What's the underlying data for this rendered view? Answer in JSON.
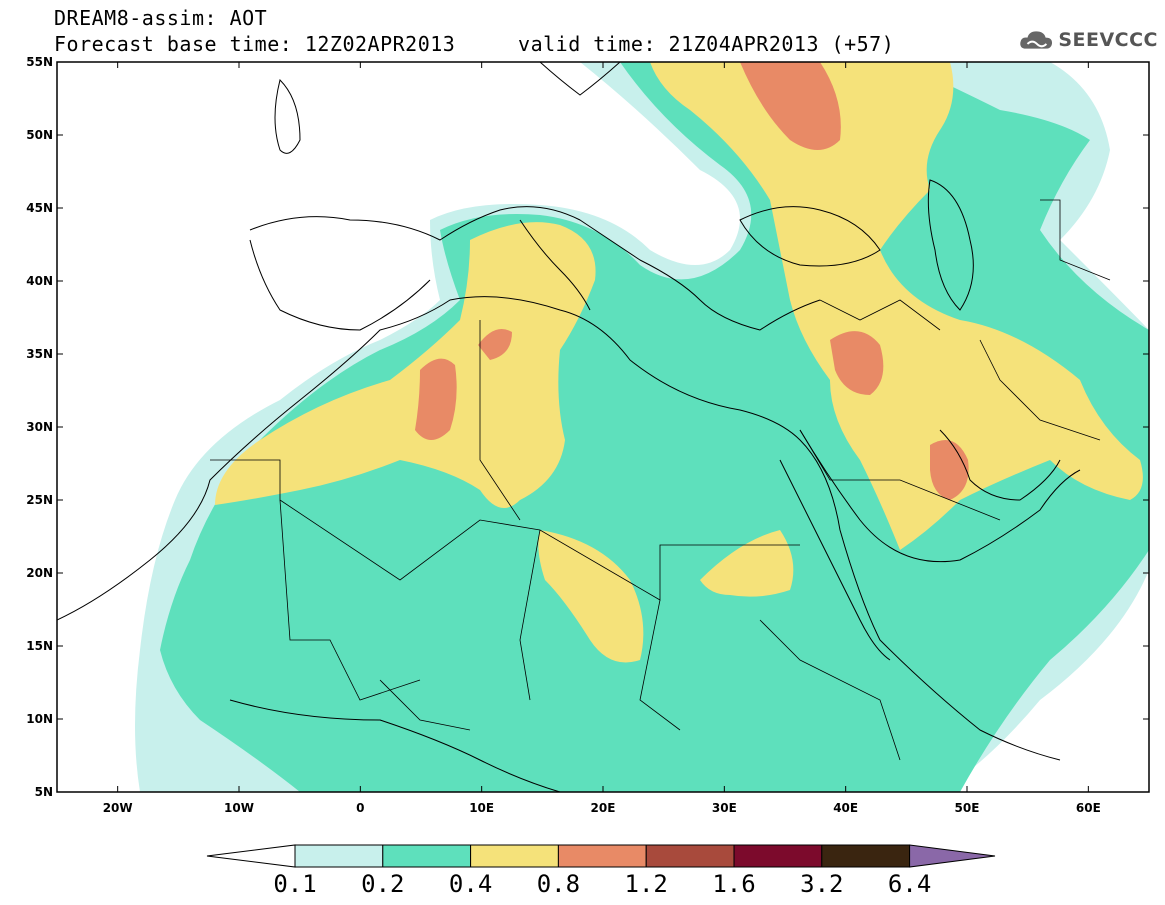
{
  "header": {
    "title": "DREAM8-assim: AOT",
    "base_time": "Forecast base time: 12Z02APR2013",
    "valid_time": "valid time: 21Z04APR2013 (+57)"
  },
  "logo": {
    "text": "SEEVCCC",
    "icon": "cloud-icon"
  },
  "map": {
    "lon_range": [
      -25,
      65
    ],
    "lat_range": [
      5,
      55
    ],
    "lat_labels": [
      "55N",
      "50N",
      "45N",
      "40N",
      "35N",
      "30N",
      "25N",
      "20N",
      "15N",
      "10N",
      "5N"
    ],
    "lon_labels": [
      "20W",
      "10W",
      "0",
      "10E",
      "20E",
      "30E",
      "40E",
      "50E",
      "60E"
    ]
  },
  "colorbar": {
    "labels": [
      "0.1",
      "0.2",
      "0.4",
      "0.8",
      "1.2",
      "1.6",
      "3.2",
      "6.4"
    ],
    "colors": [
      "#ffffff",
      "#c8f0ec",
      "#5ee0bc",
      "#f5e27a",
      "#e88a66",
      "#a84a3c",
      "#7c0a2c",
      "#3a2510",
      "#8a68a8"
    ]
  },
  "field_colors": {
    "c01": "#c8f0ec",
    "c02": "#5ee0bc",
    "c04": "#f5e27a",
    "c08": "#e88a66"
  }
}
